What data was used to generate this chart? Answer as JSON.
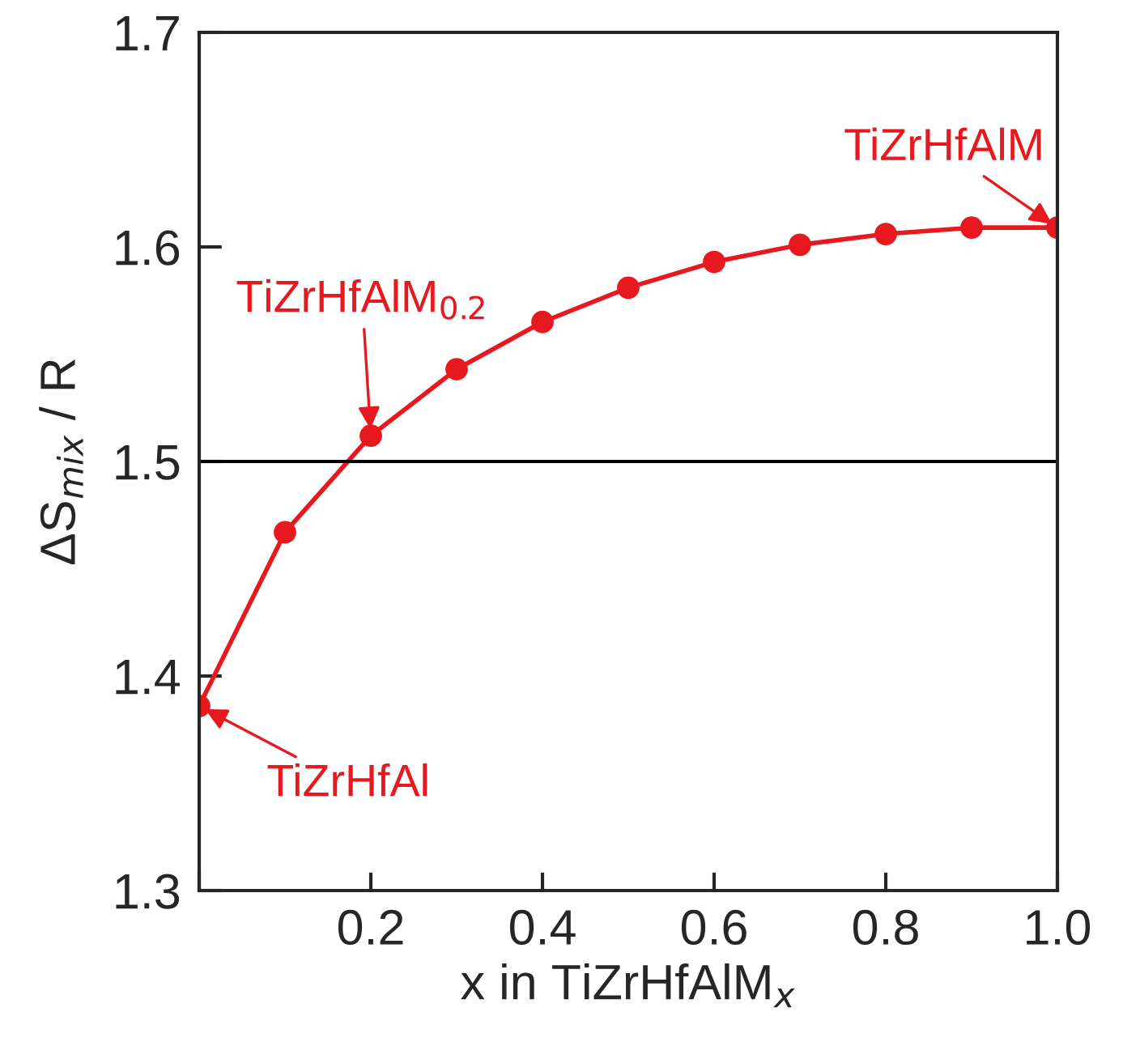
{
  "chart_data": {
    "type": "line",
    "xlabel": "x in TiZrHfAlM$_{x}$",
    "ylabel": "ΔS$_{mix}$ / R",
    "x": [
      0,
      0.1,
      0.2,
      0.3,
      0.4,
      0.5,
      0.6,
      0.7,
      0.8,
      0.9,
      1.0
    ],
    "series": [
      {
        "color": "#e8191e",
        "values": [
          1.386,
          1.467,
          1.512,
          1.543,
          1.565,
          1.581,
          1.593,
          1.601,
          1.606,
          1.609,
          1.609
        ]
      }
    ],
    "xlim": [
      0,
      1.0
    ],
    "xticks": [
      {
        "value": 0,
        "label": null
      },
      0.2,
      0.4,
      0.6,
      0.8,
      {
        "value": 1.0,
        "label": "1.0"
      }
    ],
    "ylim": [
      1.3,
      1.7
    ],
    "yticks": [
      1.3,
      1.4,
      1.5,
      1.6,
      1.7
    ],
    "ref_lines": [
      {
        "axis": "y",
        "value": 1.5,
        "color": "#000000"
      }
    ],
    "marker": "circle",
    "line_style": "solid",
    "grid": false,
    "legend": false,
    "annotations": [
      {
        "text": "TiZrHfAlM",
        "x": 1.0,
        "y": 1.609
      },
      {
        "text": "TiZrHfAlM$_{0.2}$",
        "x": 0.2,
        "y": 1.512
      },
      {
        "text": "TiZrHfAl",
        "x": 0,
        "y": 1.386
      }
    ]
  }
}
